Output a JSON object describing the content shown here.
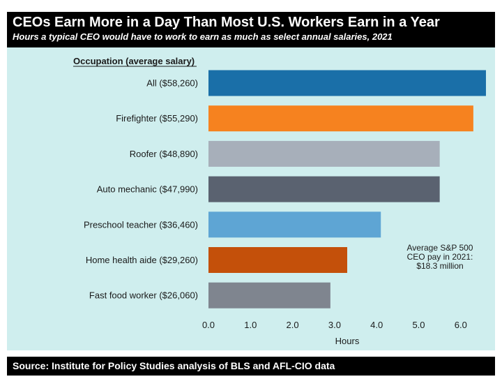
{
  "header": {
    "title": "CEOs Earn More in a Day Than Most U.S. Workers Earn in a Year",
    "subtitle": "Hours a typical CEO would have to work to earn as much as select annual salaries, 2021"
  },
  "footer": {
    "source": "Source: Institute for Policy Studies analysis of BLS and AFL-CIO data"
  },
  "chart_data": {
    "type": "bar",
    "orientation": "horizontal",
    "category_header": "Occupation (average salary)",
    "xlabel": "Hours",
    "xlim": [
      0,
      6.6
    ],
    "xticks": [
      0,
      1,
      2,
      3,
      4,
      5,
      6
    ],
    "tick_labels": [
      "0.0",
      "1.0",
      "2.0",
      "3.0",
      "4.0",
      "5.0",
      "6.0"
    ],
    "grid": false,
    "categories": [
      "All ($58,260)",
      "Firefighter ($55,290)",
      "Roofer ($48,890)",
      "Auto mechanic ($47,990)",
      "Preschool teacher ($36,460)",
      "Home health aide ($29,260)",
      "Fast food worker ($26,060)"
    ],
    "values": [
      6.6,
      6.3,
      5.5,
      5.5,
      4.1,
      3.3,
      2.9
    ],
    "colors": [
      "#1a6fa8",
      "#f6821f",
      "#a7afba",
      "#5a6270",
      "#5ea5d4",
      "#c4500a",
      "#7f858f"
    ],
    "annotation": [
      "Average S&P 500",
      "CEO pay in 2021:",
      "$18.3 million"
    ]
  }
}
